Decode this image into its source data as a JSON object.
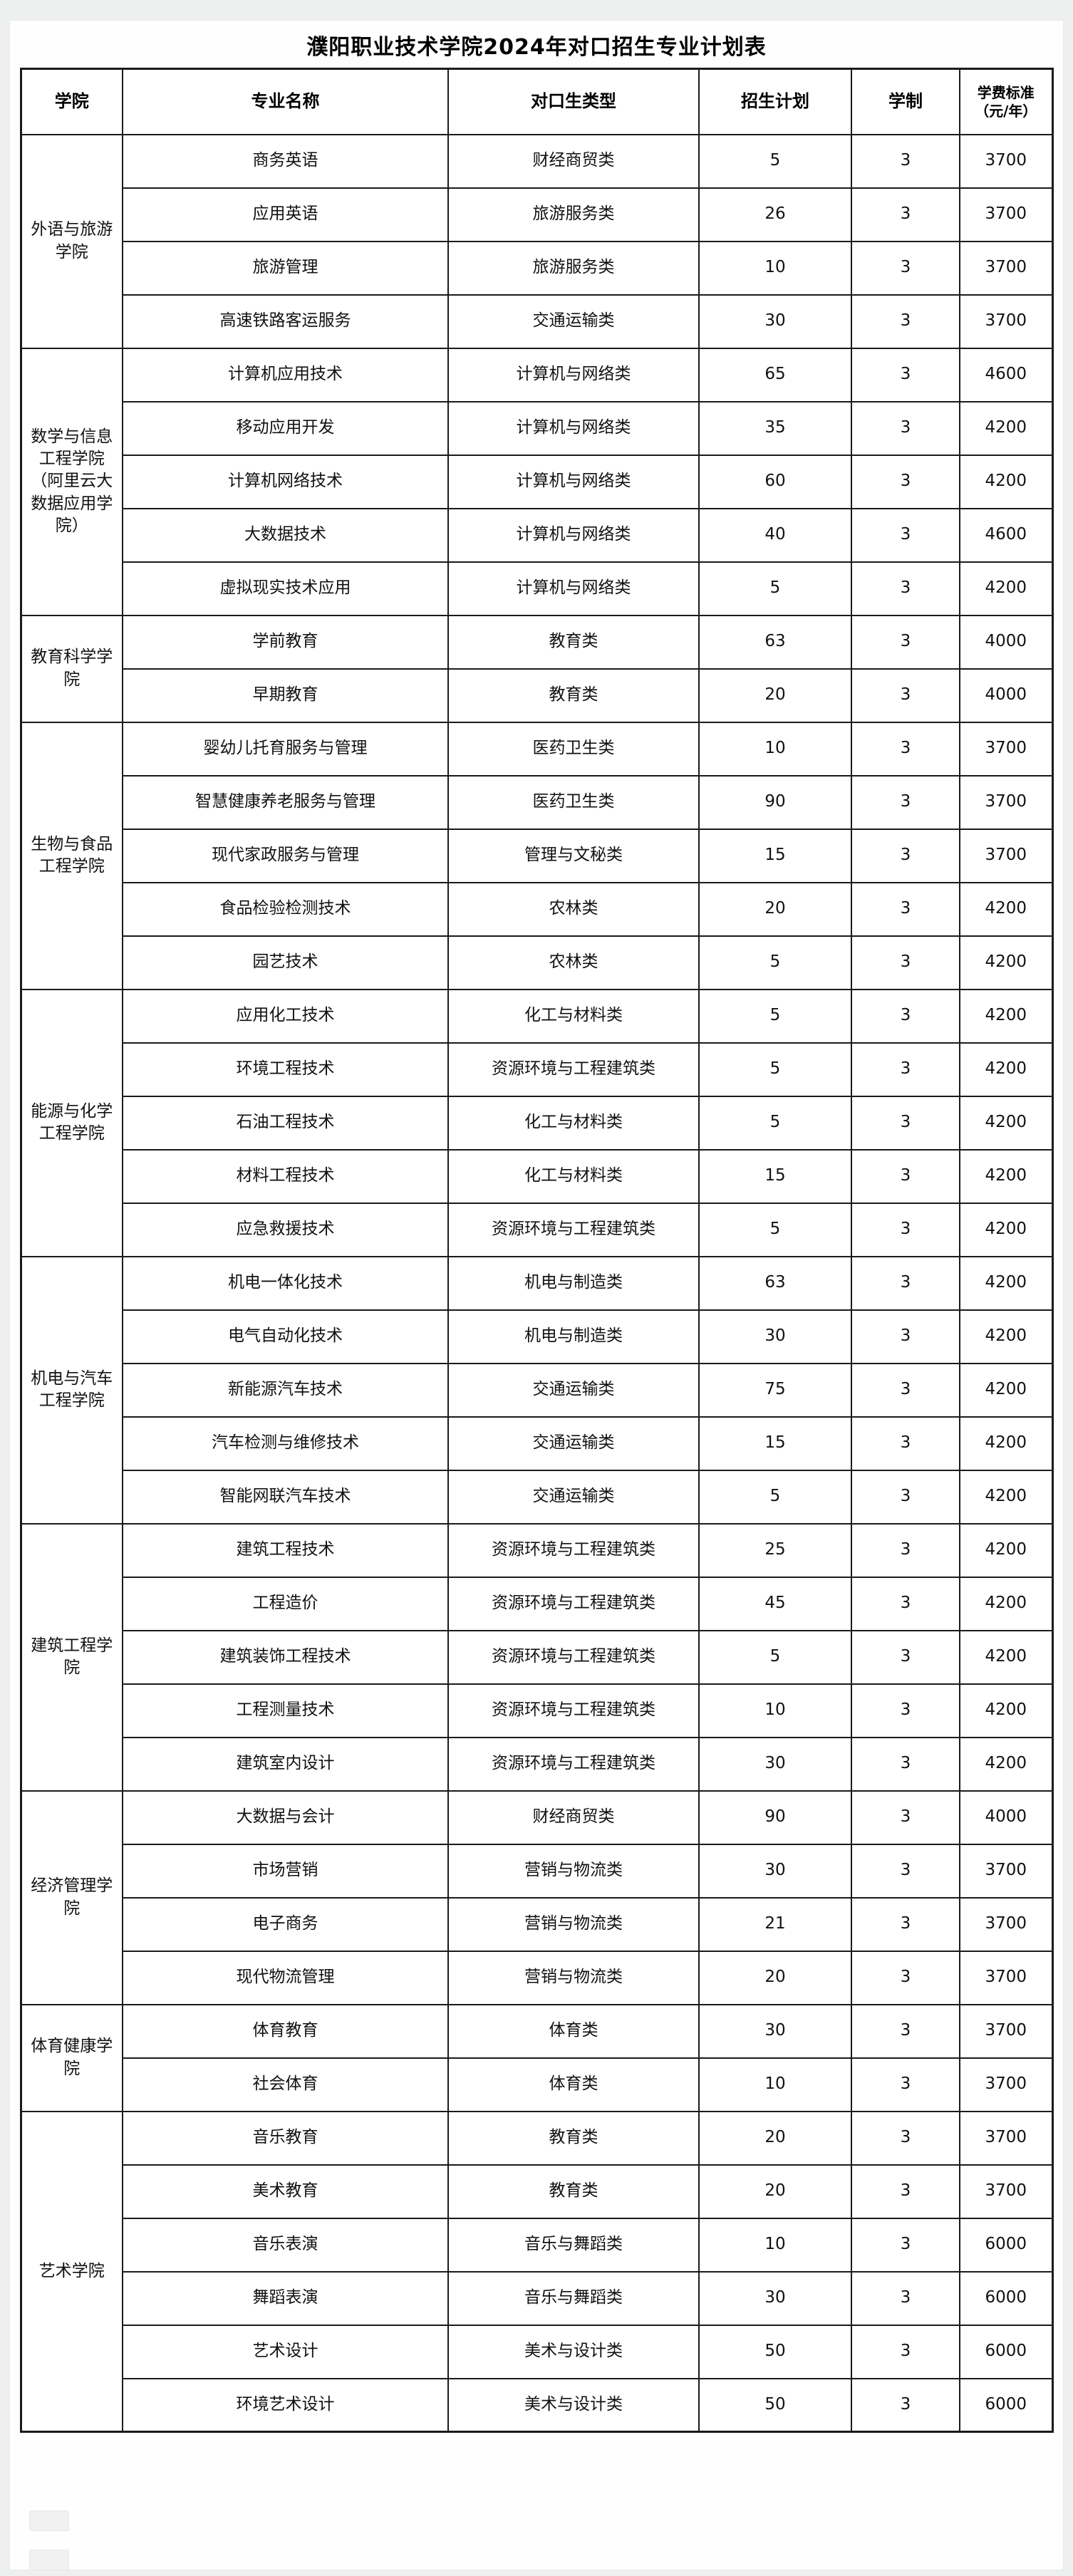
{
  "page": {
    "title": "濮阳职业技术学院2024年对口招生专业计划表"
  },
  "table": {
    "columns": [
      "学院",
      "专业名称",
      "对口生类型",
      "招生计划",
      "学制",
      "学费标准（元/年）"
    ],
    "colleges": [
      {
        "name": "外语与旅游学院",
        "majors": [
          {
            "major": "商务英语",
            "type": "财经商贸类",
            "plan": "5",
            "years": "3",
            "tuition": "3700"
          },
          {
            "major": "应用英语",
            "type": "旅游服务类",
            "plan": "26",
            "years": "3",
            "tuition": "3700"
          },
          {
            "major": "旅游管理",
            "type": "旅游服务类",
            "plan": "10",
            "years": "3",
            "tuition": "3700"
          },
          {
            "major": "高速铁路客运服务",
            "type": "交通运输类",
            "plan": "30",
            "years": "3",
            "tuition": "3700"
          }
        ]
      },
      {
        "name": "数学与信息工程学院（阿里云大数据应用学院）",
        "majors": [
          {
            "major": "计算机应用技术",
            "type": "计算机与网络类",
            "plan": "65",
            "years": "3",
            "tuition": "4600"
          },
          {
            "major": "移动应用开发",
            "type": "计算机与网络类",
            "plan": "35",
            "years": "3",
            "tuition": "4200"
          },
          {
            "major": "计算机网络技术",
            "type": "计算机与网络类",
            "plan": "60",
            "years": "3",
            "tuition": "4200"
          },
          {
            "major": "大数据技术",
            "type": "计算机与网络类",
            "plan": "40",
            "years": "3",
            "tuition": "4600"
          },
          {
            "major": "虚拟现实技术应用",
            "type": "计算机与网络类",
            "plan": "5",
            "years": "3",
            "tuition": "4200"
          }
        ]
      },
      {
        "name": "教育科学学院",
        "majors": [
          {
            "major": "学前教育",
            "type": "教育类",
            "plan": "63",
            "years": "3",
            "tuition": "4000"
          },
          {
            "major": "早期教育",
            "type": "教育类",
            "plan": "20",
            "years": "3",
            "tuition": "4000"
          }
        ]
      },
      {
        "name": "生物与食品工程学院",
        "majors": [
          {
            "major": "婴幼儿托育服务与管理",
            "type": "医药卫生类",
            "plan": "10",
            "years": "3",
            "tuition": "3700"
          },
          {
            "major": "智慧健康养老服务与管理",
            "type": "医药卫生类",
            "plan": "90",
            "years": "3",
            "tuition": "3700"
          },
          {
            "major": "现代家政服务与管理",
            "type": "管理与文秘类",
            "plan": "15",
            "years": "3",
            "tuition": "3700"
          },
          {
            "major": "食品检验检测技术",
            "type": "农林类",
            "plan": "20",
            "years": "3",
            "tuition": "4200"
          },
          {
            "major": "园艺技术",
            "type": "农林类",
            "plan": "5",
            "years": "3",
            "tuition": "4200"
          }
        ]
      },
      {
        "name": "能源与化学工程学院",
        "majors": [
          {
            "major": "应用化工技术",
            "type": "化工与材料类",
            "plan": "5",
            "years": "3",
            "tuition": "4200"
          },
          {
            "major": "环境工程技术",
            "type": "资源环境与工程建筑类",
            "plan": "5",
            "years": "3",
            "tuition": "4200"
          },
          {
            "major": "石油工程技术",
            "type": "化工与材料类",
            "plan": "5",
            "years": "3",
            "tuition": "4200"
          },
          {
            "major": "材料工程技术",
            "type": "化工与材料类",
            "plan": "15",
            "years": "3",
            "tuition": "4200"
          },
          {
            "major": "应急救援技术",
            "type": "资源环境与工程建筑类",
            "plan": "5",
            "years": "3",
            "tuition": "4200"
          }
        ]
      },
      {
        "name": "机电与汽车工程学院",
        "majors": [
          {
            "major": "机电一体化技术",
            "type": "机电与制造类",
            "plan": "63",
            "years": "3",
            "tuition": "4200"
          },
          {
            "major": "电气自动化技术",
            "type": "机电与制造类",
            "plan": "30",
            "years": "3",
            "tuition": "4200"
          },
          {
            "major": "新能源汽车技术",
            "type": "交通运输类",
            "plan": "75",
            "years": "3",
            "tuition": "4200"
          },
          {
            "major": "汽车检测与维修技术",
            "type": "交通运输类",
            "plan": "15",
            "years": "3",
            "tuition": "4200"
          },
          {
            "major": "智能网联汽车技术",
            "type": "交通运输类",
            "plan": "5",
            "years": "3",
            "tuition": "4200"
          }
        ]
      },
      {
        "name": "建筑工程学院",
        "majors": [
          {
            "major": "建筑工程技术",
            "type": "资源环境与工程建筑类",
            "plan": "25",
            "years": "3",
            "tuition": "4200"
          },
          {
            "major": "工程造价",
            "type": "资源环境与工程建筑类",
            "plan": "45",
            "years": "3",
            "tuition": "4200"
          },
          {
            "major": "建筑装饰工程技术",
            "type": "资源环境与工程建筑类",
            "plan": "5",
            "years": "3",
            "tuition": "4200"
          },
          {
            "major": "工程测量技术",
            "type": "资源环境与工程建筑类",
            "plan": "10",
            "years": "3",
            "tuition": "4200"
          },
          {
            "major": "建筑室内设计",
            "type": "资源环境与工程建筑类",
            "plan": "30",
            "years": "3",
            "tuition": "4200"
          }
        ]
      },
      {
        "name": "经济管理学院",
        "majors": [
          {
            "major": "大数据与会计",
            "type": "财经商贸类",
            "plan": "90",
            "years": "3",
            "tuition": "4000"
          },
          {
            "major": "市场营销",
            "type": "营销与物流类",
            "plan": "30",
            "years": "3",
            "tuition": "3700"
          },
          {
            "major": "电子商务",
            "type": "营销与物流类",
            "plan": "21",
            "years": "3",
            "tuition": "3700"
          },
          {
            "major": "现代物流管理",
            "type": "营销与物流类",
            "plan": "20",
            "years": "3",
            "tuition": "3700"
          }
        ]
      },
      {
        "name": "体育健康学院",
        "majors": [
          {
            "major": "体育教育",
            "type": "体育类",
            "plan": "30",
            "years": "3",
            "tuition": "3700"
          },
          {
            "major": "社会体育",
            "type": "体育类",
            "plan": "10",
            "years": "3",
            "tuition": "3700"
          }
        ]
      },
      {
        "name": "艺术学院",
        "majors": [
          {
            "major": "音乐教育",
            "type": "教育类",
            "plan": "20",
            "years": "3",
            "tuition": "3700"
          },
          {
            "major": "美术教育",
            "type": "教育类",
            "plan": "20",
            "years": "3",
            "tuition": "3700"
          },
          {
            "major": "音乐表演",
            "type": "音乐与舞蹈类",
            "plan": "10",
            "years": "3",
            "tuition": "6000"
          },
          {
            "major": "舞蹈表演",
            "type": "音乐与舞蹈类",
            "plan": "30",
            "years": "3",
            "tuition": "6000"
          },
          {
            "major": "艺术设计",
            "type": "美术与设计类",
            "plan": "50",
            "years": "3",
            "tuition": "6000"
          },
          {
            "major": "环境艺术设计",
            "type": "美术与设计类",
            "plan": "50",
            "years": "3",
            "tuition": "6000"
          }
        ]
      }
    ]
  }
}
